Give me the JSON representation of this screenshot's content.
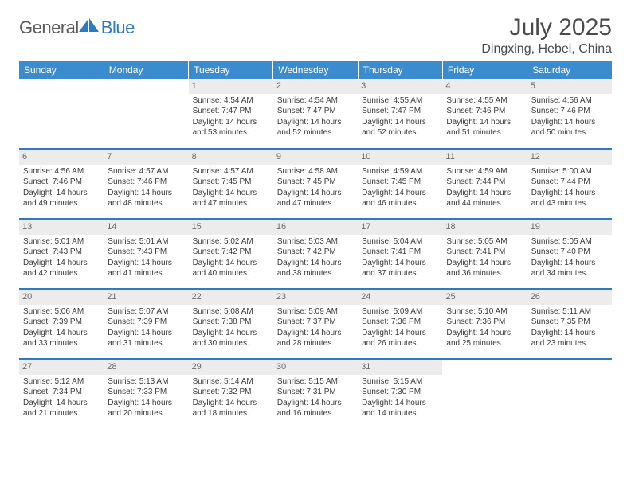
{
  "logo": {
    "prefix": "General",
    "suffix": "Blue"
  },
  "title": "July 2025",
  "location": "Dingxing, Hebei, China",
  "colors": {
    "headerBg": "#3b8bcf",
    "rowDivider": "#2d7bc0",
    "dayNumBg": "#ececec",
    "text": "#3a3a3a",
    "titleText": "#4a4a4a"
  },
  "dayHeaders": [
    "Sunday",
    "Monday",
    "Tuesday",
    "Wednesday",
    "Thursday",
    "Friday",
    "Saturday"
  ],
  "weeks": [
    [
      null,
      null,
      {
        "n": "1",
        "sr": "4:54 AM",
        "ss": "7:47 PM",
        "dl": "14 hours and 53 minutes."
      },
      {
        "n": "2",
        "sr": "4:54 AM",
        "ss": "7:47 PM",
        "dl": "14 hours and 52 minutes."
      },
      {
        "n": "3",
        "sr": "4:55 AM",
        "ss": "7:47 PM",
        "dl": "14 hours and 52 minutes."
      },
      {
        "n": "4",
        "sr": "4:55 AM",
        "ss": "7:46 PM",
        "dl": "14 hours and 51 minutes."
      },
      {
        "n": "5",
        "sr": "4:56 AM",
        "ss": "7:46 PM",
        "dl": "14 hours and 50 minutes."
      }
    ],
    [
      {
        "n": "6",
        "sr": "4:56 AM",
        "ss": "7:46 PM",
        "dl": "14 hours and 49 minutes."
      },
      {
        "n": "7",
        "sr": "4:57 AM",
        "ss": "7:46 PM",
        "dl": "14 hours and 48 minutes."
      },
      {
        "n": "8",
        "sr": "4:57 AM",
        "ss": "7:45 PM",
        "dl": "14 hours and 47 minutes."
      },
      {
        "n": "9",
        "sr": "4:58 AM",
        "ss": "7:45 PM",
        "dl": "14 hours and 47 minutes."
      },
      {
        "n": "10",
        "sr": "4:59 AM",
        "ss": "7:45 PM",
        "dl": "14 hours and 46 minutes."
      },
      {
        "n": "11",
        "sr": "4:59 AM",
        "ss": "7:44 PM",
        "dl": "14 hours and 44 minutes."
      },
      {
        "n": "12",
        "sr": "5:00 AM",
        "ss": "7:44 PM",
        "dl": "14 hours and 43 minutes."
      }
    ],
    [
      {
        "n": "13",
        "sr": "5:01 AM",
        "ss": "7:43 PM",
        "dl": "14 hours and 42 minutes."
      },
      {
        "n": "14",
        "sr": "5:01 AM",
        "ss": "7:43 PM",
        "dl": "14 hours and 41 minutes."
      },
      {
        "n": "15",
        "sr": "5:02 AM",
        "ss": "7:42 PM",
        "dl": "14 hours and 40 minutes."
      },
      {
        "n": "16",
        "sr": "5:03 AM",
        "ss": "7:42 PM",
        "dl": "14 hours and 38 minutes."
      },
      {
        "n": "17",
        "sr": "5:04 AM",
        "ss": "7:41 PM",
        "dl": "14 hours and 37 minutes."
      },
      {
        "n": "18",
        "sr": "5:05 AM",
        "ss": "7:41 PM",
        "dl": "14 hours and 36 minutes."
      },
      {
        "n": "19",
        "sr": "5:05 AM",
        "ss": "7:40 PM",
        "dl": "14 hours and 34 minutes."
      }
    ],
    [
      {
        "n": "20",
        "sr": "5:06 AM",
        "ss": "7:39 PM",
        "dl": "14 hours and 33 minutes."
      },
      {
        "n": "21",
        "sr": "5:07 AM",
        "ss": "7:39 PM",
        "dl": "14 hours and 31 minutes."
      },
      {
        "n": "22",
        "sr": "5:08 AM",
        "ss": "7:38 PM",
        "dl": "14 hours and 30 minutes."
      },
      {
        "n": "23",
        "sr": "5:09 AM",
        "ss": "7:37 PM",
        "dl": "14 hours and 28 minutes."
      },
      {
        "n": "24",
        "sr": "5:09 AM",
        "ss": "7:36 PM",
        "dl": "14 hours and 26 minutes."
      },
      {
        "n": "25",
        "sr": "5:10 AM",
        "ss": "7:36 PM",
        "dl": "14 hours and 25 minutes."
      },
      {
        "n": "26",
        "sr": "5:11 AM",
        "ss": "7:35 PM",
        "dl": "14 hours and 23 minutes."
      }
    ],
    [
      {
        "n": "27",
        "sr": "5:12 AM",
        "ss": "7:34 PM",
        "dl": "14 hours and 21 minutes."
      },
      {
        "n": "28",
        "sr": "5:13 AM",
        "ss": "7:33 PM",
        "dl": "14 hours and 20 minutes."
      },
      {
        "n": "29",
        "sr": "5:14 AM",
        "ss": "7:32 PM",
        "dl": "14 hours and 18 minutes."
      },
      {
        "n": "30",
        "sr": "5:15 AM",
        "ss": "7:31 PM",
        "dl": "14 hours and 16 minutes."
      },
      {
        "n": "31",
        "sr": "5:15 AM",
        "ss": "7:30 PM",
        "dl": "14 hours and 14 minutes."
      },
      null,
      null
    ]
  ],
  "labels": {
    "sunrise": "Sunrise:",
    "sunset": "Sunset:",
    "daylight": "Daylight:"
  }
}
